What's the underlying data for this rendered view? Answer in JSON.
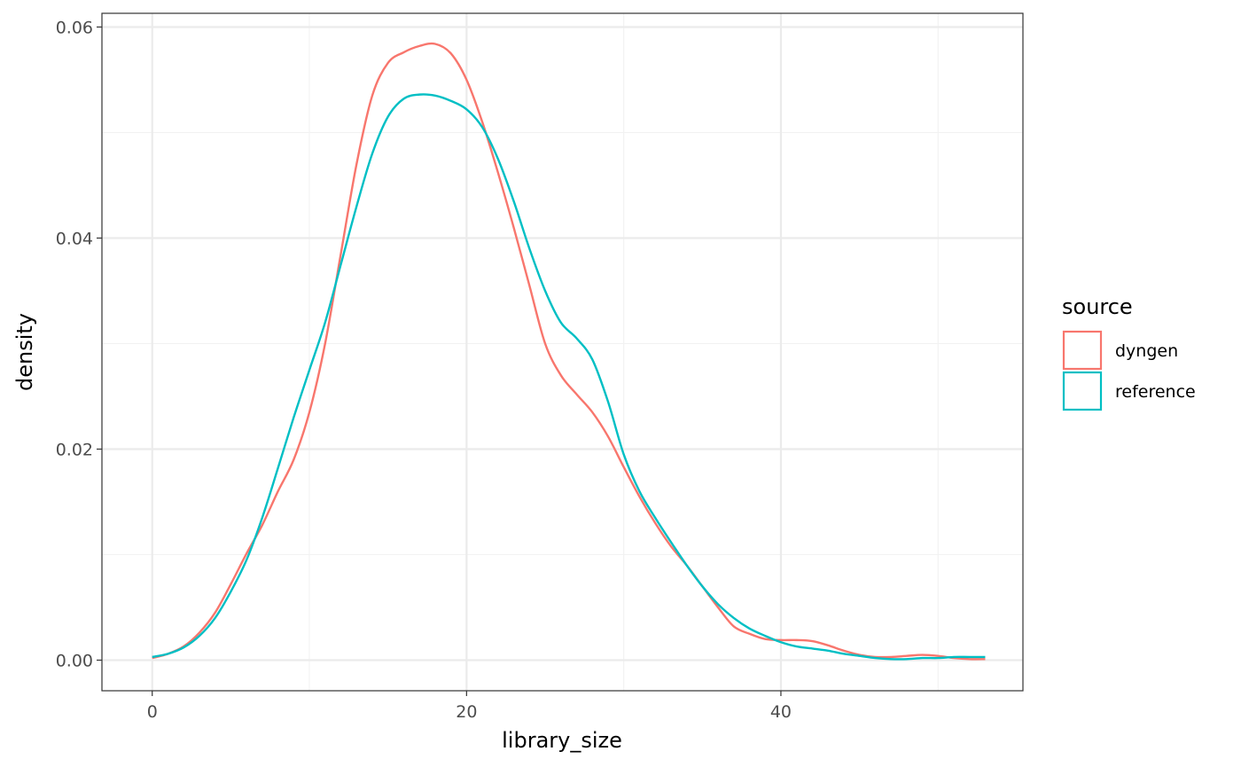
{
  "chart_data": {
    "type": "line",
    "xlabel": "library_size",
    "ylabel": "density",
    "xlim": [
      -3.2,
      55.4
    ],
    "ylim": [
      -0.0029,
      0.0613
    ],
    "x_ticks": [
      0,
      20,
      40
    ],
    "x_minor_ticks": [
      10,
      30,
      50
    ],
    "y_ticks": [
      0.0,
      0.02,
      0.04,
      0.06
    ],
    "y_tick_labels": [
      "0.00",
      "0.02",
      "0.04",
      "0.06"
    ],
    "y_minor_ticks": [
      0.01,
      0.03,
      0.05
    ],
    "grid": true,
    "legend": {
      "title": "source",
      "placement": "right"
    },
    "series": [
      {
        "name": "dyngen",
        "color": "#F8766D",
        "x": [
          0,
          1,
          2,
          3,
          4,
          5,
          6,
          7,
          8,
          9,
          10,
          11,
          12,
          13,
          14,
          15,
          16,
          17,
          18,
          19,
          20,
          21,
          22,
          23,
          24,
          25,
          26,
          27,
          28,
          29,
          30,
          31,
          32,
          33,
          34,
          35,
          36,
          37,
          38,
          39,
          40,
          41,
          42,
          43,
          44,
          45,
          46,
          47,
          48,
          49,
          50,
          51,
          52,
          53
        ],
        "y": [
          0.0002,
          0.0006,
          0.0013,
          0.0026,
          0.0045,
          0.0072,
          0.0101,
          0.0128,
          0.016,
          0.019,
          0.0235,
          0.03,
          0.0385,
          0.047,
          0.0535,
          0.0566,
          0.0576,
          0.0582,
          0.0584,
          0.0575,
          0.055,
          0.051,
          0.0462,
          0.041,
          0.0355,
          0.03,
          0.027,
          0.0252,
          0.0235,
          0.0212,
          0.0183,
          0.0155,
          0.013,
          0.0108,
          0.009,
          0.007,
          0.005,
          0.0032,
          0.0025,
          0.002,
          0.0019,
          0.0019,
          0.0018,
          0.0014,
          0.0009,
          0.0005,
          0.0003,
          0.0003,
          0.0004,
          0.0005,
          0.0004,
          0.0002,
          0.0001,
          0.0001
        ]
      },
      {
        "name": "reference",
        "color": "#00BFC4",
        "x": [
          0,
          1,
          2,
          3,
          4,
          5,
          6,
          7,
          8,
          9,
          10,
          11,
          12,
          13,
          14,
          15,
          16,
          17,
          18,
          19,
          20,
          21,
          22,
          23,
          24,
          25,
          26,
          27,
          28,
          29,
          30,
          31,
          32,
          33,
          34,
          35,
          36,
          37,
          38,
          39,
          40,
          41,
          42,
          43,
          44,
          45,
          46,
          47,
          48,
          49,
          50,
          51,
          52,
          53
        ],
        "y": [
          0.0003,
          0.0006,
          0.0012,
          0.0023,
          0.004,
          0.0065,
          0.0095,
          0.0135,
          0.0182,
          0.023,
          0.0275,
          0.032,
          0.0375,
          0.043,
          0.048,
          0.0515,
          0.0532,
          0.0536,
          0.0535,
          0.053,
          0.0522,
          0.0505,
          0.0475,
          0.0435,
          0.039,
          0.035,
          0.032,
          0.0305,
          0.0285,
          0.0245,
          0.0195,
          0.016,
          0.0135,
          0.0112,
          0.009,
          0.007,
          0.0053,
          0.004,
          0.003,
          0.0023,
          0.0017,
          0.0013,
          0.0011,
          0.0009,
          0.0006,
          0.0004,
          0.0002,
          0.0001,
          0.0001,
          0.0002,
          0.0002,
          0.0003,
          0.0003,
          0.0003
        ]
      }
    ]
  }
}
